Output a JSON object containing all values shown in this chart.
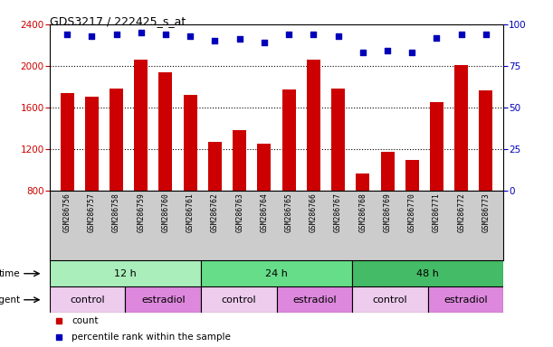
{
  "title": "GDS3217 / 222425_s_at",
  "samples": [
    "GSM286756",
    "GSM286757",
    "GSM286758",
    "GSM286759",
    "GSM286760",
    "GSM286761",
    "GSM286762",
    "GSM286763",
    "GSM286764",
    "GSM286765",
    "GSM286766",
    "GSM286767",
    "GSM286768",
    "GSM286769",
    "GSM286770",
    "GSM286771",
    "GSM286772",
    "GSM286773"
  ],
  "counts": [
    1740,
    1700,
    1780,
    2060,
    1940,
    1720,
    1270,
    1380,
    1250,
    1770,
    2060,
    1780,
    960,
    1170,
    1090,
    1650,
    2010,
    1760
  ],
  "percentiles": [
    94,
    93,
    94,
    95,
    94,
    93,
    90,
    91,
    89,
    94,
    94,
    93,
    83,
    84,
    83,
    92,
    94,
    94
  ],
  "bar_color": "#cc0000",
  "dot_color": "#0000bb",
  "ylim_left": [
    800,
    2400
  ],
  "ylim_right": [
    0,
    100
  ],
  "yticks_left": [
    800,
    1200,
    1600,
    2000,
    2400
  ],
  "yticks_right": [
    0,
    25,
    50,
    75,
    100
  ],
  "time_groups": [
    {
      "label": "12 h",
      "start": 0,
      "end": 6,
      "color": "#aaeebb"
    },
    {
      "label": "24 h",
      "start": 6,
      "end": 12,
      "color": "#66dd88"
    },
    {
      "label": "48 h",
      "start": 12,
      "end": 18,
      "color": "#44bb66"
    }
  ],
  "agent_groups": [
    {
      "label": "control",
      "start": 0,
      "end": 3,
      "color": "#eeccee"
    },
    {
      "label": "estradiol",
      "start": 3,
      "end": 6,
      "color": "#dd88dd"
    },
    {
      "label": "control",
      "start": 6,
      "end": 9,
      "color": "#eeccee"
    },
    {
      "label": "estradiol",
      "start": 9,
      "end": 12,
      "color": "#dd88dd"
    },
    {
      "label": "control",
      "start": 12,
      "end": 15,
      "color": "#eeccee"
    },
    {
      "label": "estradiol",
      "start": 15,
      "end": 18,
      "color": "#dd88dd"
    }
  ],
  "legend_items": [
    {
      "label": "count",
      "color": "#cc0000"
    },
    {
      "label": "percentile rank within the sample",
      "color": "#0000bb"
    }
  ],
  "bg_color": "#ffffff",
  "tick_label_color_left": "#cc0000",
  "tick_label_color_right": "#0000bb",
  "label_row_bg": "#cccccc"
}
